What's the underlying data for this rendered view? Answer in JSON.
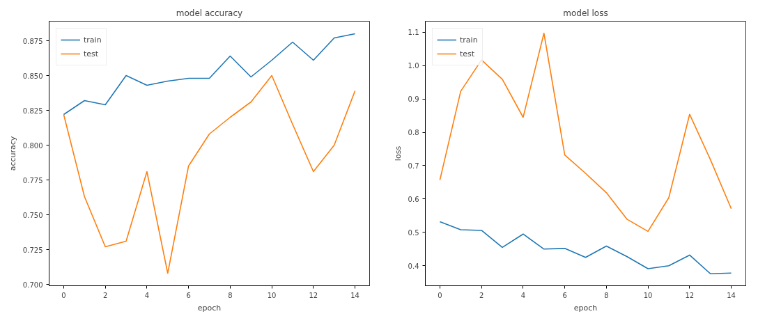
{
  "chart_data": [
    {
      "type": "line",
      "title": "model accuracy",
      "xlabel": "epoch",
      "ylabel": "accuracy",
      "x": [
        0,
        1,
        2,
        3,
        4,
        5,
        6,
        7,
        8,
        9,
        10,
        11,
        12,
        13,
        14
      ],
      "series": [
        {
          "name": "train",
          "color": "#1f77b4",
          "values": [
            0.822,
            0.832,
            0.829,
            0.85,
            0.843,
            0.846,
            0.848,
            0.848,
            0.864,
            0.849,
            0.861,
            0.874,
            0.861,
            0.877,
            0.88
          ]
        },
        {
          "name": "test",
          "color": "#ff7f0e",
          "values": [
            0.822,
            0.763,
            0.727,
            0.731,
            0.781,
            0.708,
            0.785,
            0.808,
            0.82,
            0.831,
            0.85,
            0.815,
            0.781,
            0.8,
            0.839
          ]
        }
      ],
      "xlim": [
        -0.7,
        14.7
      ],
      "ylim": [
        0.699,
        0.889
      ],
      "xticks": [
        0,
        2,
        4,
        6,
        8,
        10,
        12,
        14
      ],
      "yticks": [
        {
          "value": 0.7,
          "label": "0.700"
        },
        0.725,
        {
          "value": 0.75,
          "label": "0.750"
        },
        0.775,
        {
          "value": 0.8,
          "label": "0.800"
        },
        0.825,
        {
          "value": 0.85,
          "label": "0.850"
        },
        0.875
      ],
      "legend": "top left",
      "grid": false,
      "line_style": "solid",
      "marker": "none"
    },
    {
      "type": "line",
      "title": "model loss",
      "xlabel": "epoch",
      "ylabel": "loss",
      "x": [
        0,
        1,
        2,
        3,
        4,
        5,
        6,
        7,
        8,
        9,
        10,
        11,
        12,
        13,
        14
      ],
      "series": [
        {
          "name": "train",
          "color": "#1f77b4",
          "values": [
            0.532,
            0.508,
            0.506,
            0.455,
            0.495,
            0.45,
            0.452,
            0.425,
            0.459,
            0.427,
            0.391,
            0.4,
            0.432,
            0.376,
            0.378
          ]
        },
        {
          "name": "test",
          "color": "#ff7f0e",
          "values": [
            0.657,
            0.923,
            1.017,
            0.959,
            0.845,
            1.097,
            0.732,
            0.677,
            0.619,
            0.539,
            0.503,
            0.604,
            0.854,
            0.718,
            0.571
          ]
        }
      ],
      "xlim": [
        -0.7,
        14.7
      ],
      "ylim": [
        0.34,
        1.133
      ],
      "xticks": [
        0,
        2,
        4,
        6,
        8,
        10,
        12,
        14
      ],
      "yticks": [
        0.4,
        0.5,
        0.6,
        0.7,
        0.8,
        0.9,
        {
          "value": 1.0,
          "label": "1.0"
        },
        1.1
      ],
      "legend": "top left",
      "grid": false,
      "line_style": "solid",
      "marker": "none"
    }
  ]
}
